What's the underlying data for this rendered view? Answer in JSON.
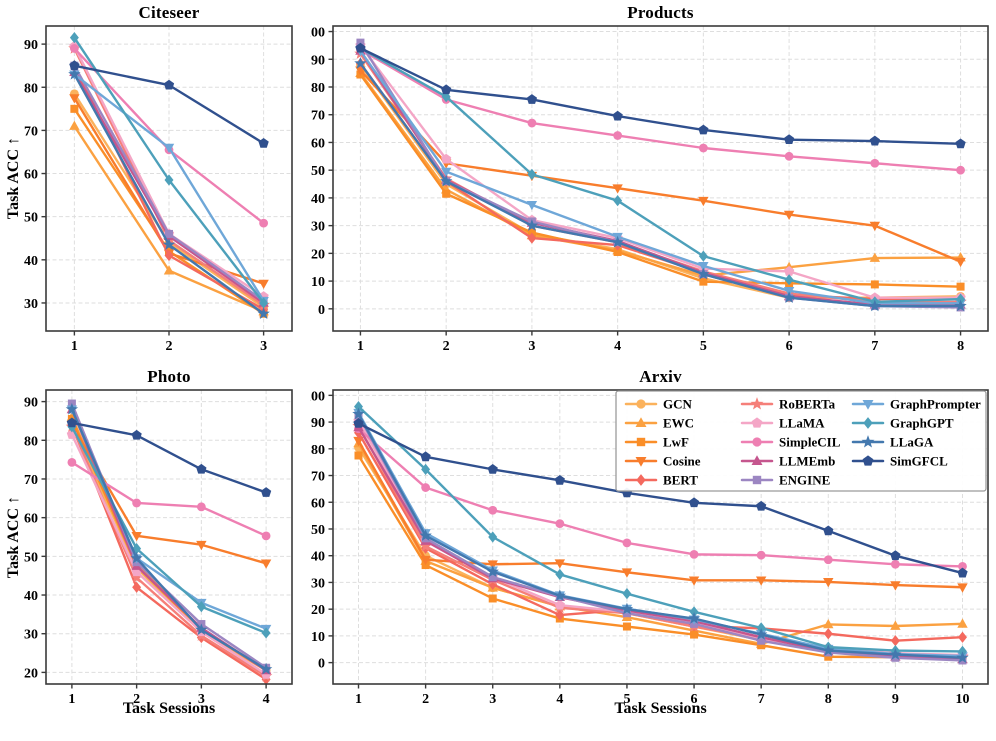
{
  "figure": {
    "ylabel": "Task ACC ↑",
    "xlabel": "Task Sessions",
    "background": "#ffffff",
    "grid_color": "#dedede",
    "spine_color": "#3a3a3a"
  },
  "methods": [
    {
      "name": "GCN",
      "color": "#FBB25C",
      "marker": "circle"
    },
    {
      "name": "EWC",
      "color": "#FBA141",
      "marker": "triangle-up"
    },
    {
      "name": "LwF",
      "color": "#FA8E28",
      "marker": "square"
    },
    {
      "name": "Cosine",
      "color": "#F87D2C",
      "marker": "triangle-down"
    },
    {
      "name": "BERT",
      "color": "#F4695E",
      "marker": "diamond"
    },
    {
      "name": "RoBERTa",
      "color": "#F57F79",
      "marker": "star"
    },
    {
      "name": "LLaMA",
      "color": "#F4A6C6",
      "marker": "pentagon"
    },
    {
      "name": "SimpleCIL",
      "color": "#EE7FB2",
      "marker": "circle"
    },
    {
      "name": "LLMEmb",
      "color": "#C5568E",
      "marker": "triangle-up"
    },
    {
      "name": "ENGINE",
      "color": "#9C86C2",
      "marker": "square"
    },
    {
      "name": "GraphPrompter",
      "color": "#6FA7D8",
      "marker": "triangle-down"
    },
    {
      "name": "GraphGPT",
      "color": "#4DA0BA",
      "marker": "diamond"
    },
    {
      "name": "LLaGA",
      "color": "#4378AE",
      "marker": "star"
    },
    {
      "name": "SimGFCL",
      "color": "#30508E",
      "marker": "pentagon"
    }
  ],
  "legend": {
    "columns": 3,
    "location": "upper right of Arxiv subplot",
    "entries": [
      "GCN",
      "EWC",
      "LwF",
      "Cosine",
      "BERT",
      "RoBERTa",
      "LLaMA",
      "SimpleCIL",
      "LLMEmb",
      "ENGINE",
      "GraphPrompter",
      "GraphGPT",
      "LLaGA",
      "SimGFCL"
    ]
  },
  "chart_data": [
    {
      "type": "line",
      "title": "Citeseer",
      "xlabel": "",
      "ylabel": "Task ACC ↑",
      "x": [
        1,
        2,
        3
      ],
      "xlim": [
        0.7,
        3.3
      ],
      "ylim": [
        23.5,
        94.2
      ],
      "yticks": [
        30,
        40,
        50,
        60,
        70,
        80,
        90
      ],
      "grid": true,
      "legend": false,
      "series": [
        {
          "name": "GCN",
          "values": [
            78.5,
            44.0,
            29.0
          ]
        },
        {
          "name": "EWC",
          "values": [
            71.0,
            37.5,
            28.0
          ]
        },
        {
          "name": "LwF",
          "values": [
            75.0,
            42.0,
            27.5
          ]
        },
        {
          "name": "Cosine",
          "values": [
            77.5,
            41.5,
            34.5
          ]
        },
        {
          "name": "BERT",
          "values": [
            85.0,
            41.0,
            28.5
          ]
        },
        {
          "name": "RoBERTa",
          "values": [
            89.0,
            44.5,
            29.5
          ]
        },
        {
          "name": "LLaMA",
          "values": [
            89.5,
            46.0,
            31.5
          ]
        },
        {
          "name": "SimpleCIL",
          "values": [
            89.0,
            65.5,
            48.5
          ]
        },
        {
          "name": "LLMEmb",
          "values": [
            83.5,
            45.5,
            30.0
          ]
        },
        {
          "name": "ENGINE",
          "values": [
            85.0,
            46.0,
            30.5
          ]
        },
        {
          "name": "GraphPrompter",
          "values": [
            83.0,
            66.0,
            30.5
          ]
        },
        {
          "name": "GraphGPT",
          "values": [
            91.5,
            58.5,
            30.0
          ]
        },
        {
          "name": "LLaGA",
          "values": [
            83.0,
            43.5,
            27.5
          ]
        },
        {
          "name": "SimGFCL",
          "values": [
            85.0,
            80.5,
            67.0
          ]
        }
      ]
    },
    {
      "type": "line",
      "title": "Products",
      "xlabel": "",
      "ylabel": "",
      "x": [
        1,
        2,
        3,
        4,
        5,
        6,
        7,
        8
      ],
      "xlim": [
        0.68,
        8.32
      ],
      "ylim": [
        -8,
        102
      ],
      "yticks": [
        0,
        10,
        20,
        30,
        40,
        50,
        60,
        70,
        80,
        90,
        100
      ],
      "grid": true,
      "legend": false,
      "series": [
        {
          "name": "GCN",
          "values": [
            88.0,
            45.0,
            27.0,
            21.5,
            11.0,
            4.0,
            4.0,
            4.5
          ]
        },
        {
          "name": "EWC",
          "values": [
            85.0,
            43.0,
            26.5,
            21.0,
            12.0,
            15.0,
            18.3,
            18.5
          ]
        },
        {
          "name": "LwF",
          "values": [
            84.5,
            41.5,
            27.5,
            20.5,
            9.8,
            9.2,
            8.8,
            8.0
          ]
        },
        {
          "name": "Cosine",
          "values": [
            86.0,
            52.5,
            48.0,
            43.5,
            39.0,
            34.0,
            30.0,
            17.0
          ]
        },
        {
          "name": "BERT",
          "values": [
            88.5,
            46.0,
            25.5,
            23.0,
            13.0,
            5.0,
            3.5,
            3.5
          ]
        },
        {
          "name": "RoBERTa",
          "values": [
            92.0,
            47.0,
            30.0,
            24.0,
            13.5,
            5.5,
            2.5,
            2.5
          ]
        },
        {
          "name": "LLaMA",
          "values": [
            95.0,
            54.0,
            32.0,
            25.5,
            14.5,
            13.5,
            4.0,
            4.0
          ]
        },
        {
          "name": "SimpleCIL",
          "values": [
            93.5,
            75.5,
            67.0,
            62.5,
            58.0,
            55.0,
            52.5,
            50.0
          ]
        },
        {
          "name": "LLMEmb",
          "values": [
            93.0,
            46.5,
            31.0,
            24.5,
            13.0,
            4.5,
            1.5,
            1.5
          ]
        },
        {
          "name": "ENGINE",
          "values": [
            96.0,
            46.0,
            31.5,
            24.0,
            12.5,
            4.0,
            1.0,
            0.5
          ]
        },
        {
          "name": "GraphPrompter",
          "values": [
            93.0,
            49.5,
            37.5,
            26.0,
            15.5,
            6.5,
            2.0,
            2.0
          ]
        },
        {
          "name": "GraphGPT",
          "values": [
            94.0,
            76.5,
            48.5,
            39.0,
            19.0,
            10.5,
            2.5,
            3.5
          ]
        },
        {
          "name": "LLaGA",
          "values": [
            88.5,
            46.0,
            30.0,
            24.0,
            12.5,
            4.0,
            1.0,
            1.0
          ]
        },
        {
          "name": "SimGFCL",
          "values": [
            94.0,
            79.0,
            75.5,
            69.5,
            64.5,
            61.0,
            60.5,
            59.5
          ]
        }
      ]
    },
    {
      "type": "line",
      "title": "Photo",
      "xlabel": "Task Sessions",
      "ylabel": "Task ACC ↑",
      "x": [
        1,
        2,
        3,
        4
      ],
      "xlim": [
        0.6,
        4.4
      ],
      "ylim": [
        17,
        93
      ],
      "yticks": [
        20,
        30,
        40,
        50,
        60,
        70,
        80,
        90
      ],
      "grid": true,
      "legend": false,
      "series": [
        {
          "name": "GCN",
          "values": [
            84.0,
            47.0,
            30.5,
            20.5
          ]
        },
        {
          "name": "EWC",
          "values": [
            86.0,
            48.0,
            31.0,
            20.5
          ]
        },
        {
          "name": "LwF",
          "values": [
            85.5,
            47.5,
            31.0,
            20.8
          ]
        },
        {
          "name": "Cosine",
          "values": [
            84.0,
            55.3,
            53.0,
            48.2
          ]
        },
        {
          "name": "BERT",
          "values": [
            84.0,
            42.0,
            29.0,
            18.2
          ]
        },
        {
          "name": "RoBERTa",
          "values": [
            83.5,
            44.5,
            29.5,
            19.0
          ]
        },
        {
          "name": "LLaMA",
          "values": [
            81.5,
            46.0,
            30.5,
            19.5
          ]
        },
        {
          "name": "SimpleCIL",
          "values": [
            74.3,
            63.8,
            62.8,
            55.3
          ]
        },
        {
          "name": "LLMEmb",
          "values": [
            88.0,
            47.5,
            31.5,
            20.5
          ]
        },
        {
          "name": "ENGINE",
          "values": [
            89.5,
            48.5,
            32.5,
            21.2
          ]
        },
        {
          "name": "GraphPrompter",
          "values": [
            88.0,
            49.5,
            38.0,
            31.3
          ]
        },
        {
          "name": "GraphGPT",
          "values": [
            83.5,
            52.0,
            37.0,
            30.2
          ]
        },
        {
          "name": "LLaGA",
          "values": [
            88.0,
            49.5,
            31.0,
            20.8
          ]
        },
        {
          "name": "SimGFCL",
          "values": [
            84.5,
            81.3,
            72.5,
            66.5
          ]
        }
      ]
    },
    {
      "type": "line",
      "title": "Arxiv",
      "xlabel": "Task Sessions",
      "ylabel": "",
      "x": [
        1,
        2,
        3,
        4,
        5,
        6,
        7,
        8,
        9,
        10
      ],
      "xlim": [
        0.62,
        10.38
      ],
      "ylim": [
        -8,
        102
      ],
      "yticks": [
        0,
        10,
        20,
        30,
        40,
        50,
        60,
        70,
        80,
        90,
        100
      ],
      "grid": true,
      "legend": true,
      "series": [
        {
          "name": "GCN",
          "values": [
            80.5,
            40.0,
            28.0,
            21.0,
            18.5,
            13.5,
            8.5,
            4.5,
            2.5,
            2.0
          ]
        },
        {
          "name": "EWC",
          "values": [
            82.0,
            38.0,
            28.0,
            21.0,
            17.0,
            12.0,
            7.0,
            14.3,
            13.7,
            14.5
          ]
        },
        {
          "name": "LwF",
          "values": [
            77.5,
            36.5,
            24.0,
            16.5,
            13.5,
            10.5,
            6.5,
            2.2,
            2.0,
            1.5
          ]
        },
        {
          "name": "Cosine",
          "values": [
            83.0,
            38.5,
            36.8,
            37.2,
            33.8,
            30.8,
            30.8,
            30.2,
            29.0,
            28.2
          ]
        },
        {
          "name": "BERT",
          "values": [
            86.0,
            42.8,
            29.3,
            17.8,
            19.8,
            13.8,
            12.8,
            10.8,
            8.2,
            9.5
          ]
        },
        {
          "name": "RoBERTa",
          "values": [
            88.5,
            43.5,
            31.0,
            20.5,
            18.5,
            13.5,
            9.0,
            4.8,
            2.8,
            2.2
          ]
        },
        {
          "name": "LLaMA",
          "values": [
            90.5,
            45.8,
            32.0,
            21.5,
            19.0,
            14.8,
            8.5,
            5.5,
            3.5,
            2.8
          ]
        },
        {
          "name": "SimpleCIL",
          "values": [
            87.5,
            65.5,
            57.0,
            52.0,
            44.8,
            40.5,
            40.2,
            38.5,
            36.8,
            36.0
          ]
        },
        {
          "name": "LLMEmb",
          "values": [
            88.0,
            45.5,
            31.5,
            24.5,
            19.5,
            15.5,
            9.5,
            4.2,
            2.2,
            1.2
          ]
        },
        {
          "name": "ENGINE",
          "values": [
            92.5,
            46.5,
            32.0,
            24.8,
            18.5,
            14.5,
            8.2,
            3.8,
            1.8,
            0.8
          ]
        },
        {
          "name": "GraphPrompter",
          "values": [
            93.5,
            48.5,
            34.5,
            25.2,
            20.2,
            16.2,
            10.8,
            5.2,
            3.2,
            2.5
          ]
        },
        {
          "name": "GraphGPT",
          "values": [
            95.8,
            72.3,
            47.0,
            33.0,
            25.8,
            19.0,
            13.0,
            5.8,
            4.5,
            4.2
          ]
        },
        {
          "name": "LLaGA",
          "values": [
            93.0,
            47.5,
            34.0,
            25.0,
            20.0,
            16.5,
            10.5,
            4.5,
            3.0,
            1.8
          ]
        },
        {
          "name": "SimGFCL",
          "values": [
            89.5,
            77.0,
            72.3,
            68.2,
            63.5,
            59.8,
            58.5,
            49.3,
            40.0,
            33.5
          ]
        }
      ]
    }
  ]
}
